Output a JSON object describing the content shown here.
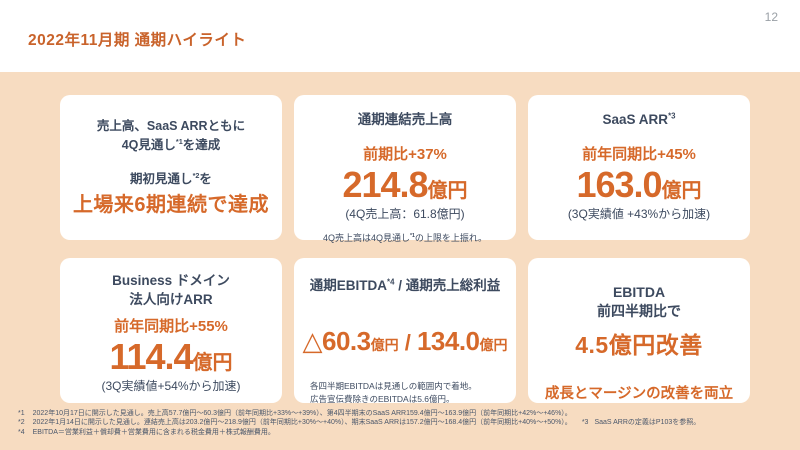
{
  "page": {
    "number": "12",
    "title": "2022年11月期 通期ハイライト"
  },
  "colors": {
    "accent_orange": "#d6692a",
    "text_navy": "#3d4a5f",
    "band_peach": "#f7dcc1",
    "card_white": "#ffffff"
  },
  "cards": [
    {
      "line1": "売上高、SaaS ARRともに",
      "line2_pre": "4Q見通し",
      "line2_sup": "*1",
      "line2_post": "を達成",
      "line3_pre": "期初見通し",
      "line3_sup": "*2",
      "line3_post": "を",
      "headline": "上場来6期連続で達成"
    },
    {
      "title": "通期連結売上高",
      "change_label": "前期比+37%",
      "value": "214.8",
      "unit": "億円",
      "sub": "(4Q売上高：61.8億円)",
      "note_pre": "4Q売上高は4Q見通し",
      "note_sup": "*1",
      "note_post": "の上限を上振れ。"
    },
    {
      "title_pre": "SaaS ARR",
      "title_sup": "*3",
      "change_label": "前年同期比+45%",
      "value": "163.0",
      "unit": "億円",
      "sub": "(3Q実績値 +43%から加速)"
    },
    {
      "title_line1": "Business ドメイン",
      "title_line2": "法人向けARR",
      "change_label": "前年同期比+55%",
      "value": "114.4",
      "unit": "億円",
      "sub": "(3Q実績値+54%から加速)"
    },
    {
      "title_pre": "通期EBITDA",
      "title_sup": "*4",
      "title_post": " / 通期売上総利益",
      "value1": "△60.3",
      "unit1": "億円",
      "separator": " / ",
      "value2": "134.0",
      "unit2": "億円",
      "note1": "各四半期EBITDAは見通しの範囲内で着地。",
      "note2": "広告宣伝費除きのEBITDAは5.6億円。"
    },
    {
      "line1": "EBITDA",
      "line2": "前四半期比で",
      "headline": "4.5億円改善",
      "tagline": "成長とマージンの改善を両立"
    }
  ],
  "footnotes": {
    "line1_ref": "*1",
    "line1_text": "2022年10月17日に開示した見通し。売上高57.7億円～60.3億円（前年同期比+33%～+39%）、第4四半期末のSaaS ARR159.4億円～163.9億円（前年同期比+42%～+46%）。",
    "line2_ref": "*2",
    "line2_text": "2022年1月14日に開示した見通し。連結売上高は203.2億円～218.9億円（前年同期比+30%～+40%）、期末SaaS ARRは157.2億円～168.4億円（前年同期比+40%～+50%）。",
    "line2b_ref": "*3",
    "line2b_text": "SaaS ARRの定義はP103を参照。",
    "line3_ref": "*4",
    "line3_text": "EBITDA＝営業利益＋償却費＋営業費用に含まれる税金費用＋株式報酬費用。"
  }
}
